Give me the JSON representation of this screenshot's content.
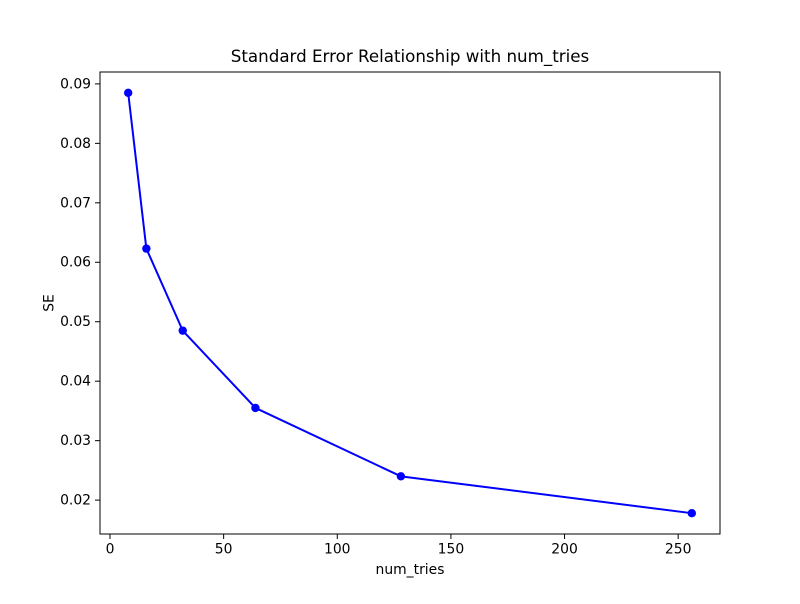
{
  "chart_data": {
    "type": "line",
    "title": "Standard Error Relationship with num_tries",
    "xlabel": "num_tries",
    "ylabel": "SE",
    "series": [
      {
        "name": "SE",
        "x": [
          8,
          16,
          32,
          64,
          128,
          256
        ],
        "y": [
          0.0885,
          0.0623,
          0.0485,
          0.0355,
          0.024,
          0.0178
        ]
      }
    ],
    "x_ticks": [
      0,
      50,
      100,
      150,
      200,
      250
    ],
    "y_ticks": [
      0.02,
      0.03,
      0.04,
      0.05,
      0.06,
      0.07,
      0.08,
      0.09
    ],
    "y_tick_decimals": 2,
    "xlim": [
      -4.4,
      268.4
    ],
    "ylim": [
      0.0143,
      0.092
    ],
    "grid": false,
    "legend": "none",
    "line_color": "#0000ff",
    "marker": "circle",
    "marker_color": "#0000ff",
    "background_color": "#ffffff"
  }
}
